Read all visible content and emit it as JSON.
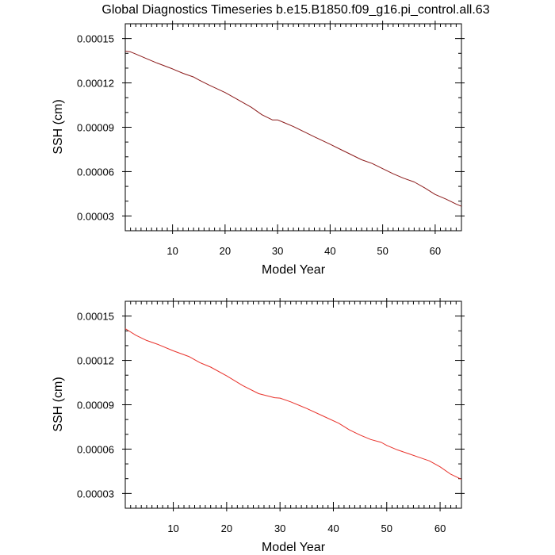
{
  "title": "Global Diagnostics Timeseries b.e15.B1850.f09_g16.pi_control.all.63",
  "chart_data": [
    {
      "type": "line",
      "xlabel": "Model Year",
      "ylabel": "SSH (cm)",
      "xlim": [
        1,
        65
      ],
      "ylim": [
        2e-05,
        0.00016
      ],
      "xticks": [
        10,
        20,
        30,
        40,
        50,
        60
      ],
      "yticks": [
        3e-05,
        6e-05,
        9e-05,
        0.00012,
        0.00015
      ],
      "ytick_labels": [
        "0.00003",
        "0.00006",
        "0.00009",
        "0.00012",
        "0.00015"
      ],
      "grid": false,
      "series": [
        {
          "color": "#8b1a1a",
          "x": [
            1,
            2,
            3,
            5,
            7,
            10,
            12,
            14,
            15,
            17,
            20,
            22,
            25,
            27,
            29,
            30,
            31,
            33,
            35,
            37,
            40,
            42,
            44,
            46,
            48,
            50,
            52,
            54,
            56,
            58,
            60,
            62,
            64,
            65
          ],
          "y": [
            0.0001415,
            0.000141,
            0.0001395,
            0.0001365,
            0.0001335,
            0.0001295,
            0.0001265,
            0.000124,
            0.000122,
            0.0001185,
            0.0001135,
            0.0001095,
            0.0001035,
            9.85e-05,
            9.5e-05,
            9.5e-05,
            9.35e-05,
            9.05e-05,
            8.7e-05,
            8.35e-05,
            7.85e-05,
            7.5e-05,
            7.15e-05,
            6.8e-05,
            6.55e-05,
            6.2e-05,
            5.85e-05,
            5.55e-05,
            5.3e-05,
            4.9e-05,
            4.45e-05,
            4.15e-05,
            3.8e-05,
            3.65e-05
          ]
        }
      ]
    },
    {
      "type": "line",
      "xlabel": "Model Year",
      "ylabel": "SSH (cm)",
      "xlim": [
        1,
        64
      ],
      "ylim": [
        2e-05,
        0.00016
      ],
      "xticks": [
        10,
        20,
        30,
        40,
        50,
        60
      ],
      "yticks": [
        3e-05,
        6e-05,
        9e-05,
        0.00012,
        0.00015
      ],
      "ytick_labels": [
        "0.00003",
        "0.00006",
        "0.00009",
        "0.00012",
        "0.00015"
      ],
      "grid": false,
      "series": [
        {
          "color": "#e8312a",
          "x": [
            1,
            3,
            5,
            7,
            10,
            13,
            15,
            17,
            20,
            23,
            26,
            29,
            30,
            32,
            35,
            38,
            41,
            43,
            45,
            47,
            49,
            50,
            52,
            54,
            56,
            58,
            60,
            62,
            64
          ],
          "y": [
            0.0001415,
            0.000137,
            0.0001335,
            0.000131,
            0.0001265,
            0.0001225,
            0.0001185,
            0.0001155,
            0.0001095,
            0.000103,
            9.75e-05,
            9.48e-05,
            9.45e-05,
            9.2e-05,
            8.75e-05,
            8.25e-05,
            7.75e-05,
            7.3e-05,
            6.95e-05,
            6.65e-05,
            6.45e-05,
            6.25e-05,
            5.95e-05,
            5.7e-05,
            5.45e-05,
            5.2e-05,
            4.8e-05,
            4.3e-05,
            3.95e-05
          ]
        }
      ]
    }
  ]
}
